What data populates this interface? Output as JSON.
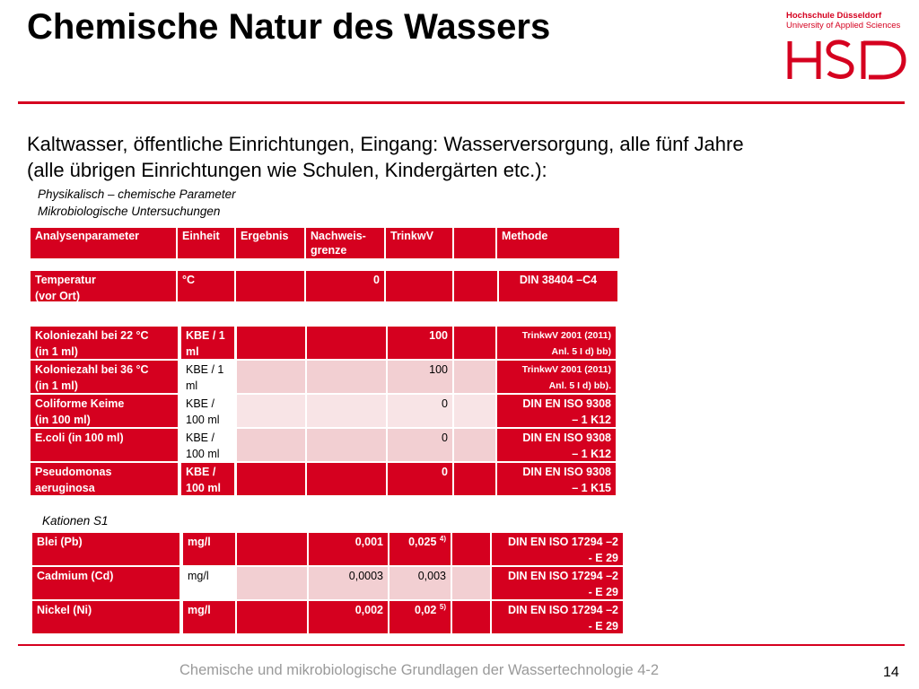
{
  "title": "Chemische Natur des Wassers",
  "logo": {
    "name": "Hochschule Düsseldorf",
    "subtitle": "University of Applied Sciences",
    "mark": "HSD",
    "color": "#d5001f"
  },
  "intro": {
    "line1": "Kaltwasser, öffentliche Einrichtungen, Eingang: Wasserversorgung, alle fünf Jahre",
    "line2": "(alle übrigen Einrichtungen wie Schulen, Kindergärten etc.):"
  },
  "subheadings": {
    "phys": "Physikalisch – chemische Parameter",
    "mikro": "Mikrobiologische Untersuchungen",
    "kationen": "Kationen S1"
  },
  "table_header": {
    "analysenparameter": "Analysenparameter",
    "einheit": "Einheit",
    "ergebnis": "Ergebnis",
    "nachweis1": "Nachweis-",
    "nachweis2": "grenze",
    "trinkwv": "TrinkwV",
    "methode": "Methode"
  },
  "temperature": {
    "param1": "Temperatur",
    "param2": "(vor Ort)",
    "unit": "°C",
    "nachweis": "0",
    "methode": "DIN 38404 –C4"
  },
  "micro": [
    {
      "p1": "Koloniezahl bei 22 °C",
      "p2": "(in 1 ml)",
      "u1": "KBE / 1",
      "u2": "ml",
      "trinkwv": "100",
      "m1": "TrinkwV 2001 (2011)",
      "m2": "Anl. 5 I d) bb)"
    },
    {
      "p1": "Koloniezahl bei 36 °C",
      "p2": "(in 1 ml)",
      "u1": "KBE / 1",
      "u2": "ml",
      "trinkwv": "100",
      "m1": "TrinkwV 2001 (2011)",
      "m2": "Anl. 5 I d) bb)."
    },
    {
      "p1": "Coliforme Keime",
      "p2": "(in 100 ml)",
      "u1": "KBE /",
      "u2": "100 ml",
      "trinkwv": "0",
      "m1": "DIN EN ISO 9308",
      "m2": "– 1 K12"
    },
    {
      "p1": "E.coli (in 100 ml)",
      "p2": "",
      "u1": "KBE /",
      "u2": "100 ml",
      "trinkwv": "0",
      "m1": "DIN EN ISO 9308",
      "m2": "– 1 K12"
    },
    {
      "p1": "Pseudomonas",
      "p2": "aeruginosa",
      "u1": "KBE /",
      "u2": "100 ml",
      "trinkwv": "0",
      "m1": "DIN EN ISO 9308",
      "m2": "– 1 K15"
    }
  ],
  "cations": [
    {
      "param": "Blei (Pb)",
      "unit": "mg/l",
      "nachweis": "0,001",
      "trinkwv": "0,025",
      "sup": "4)",
      "m1": "DIN EN ISO 17294 –2",
      "m2": "- E 29"
    },
    {
      "param": "Cadmium (Cd)",
      "unit": "mg/l",
      "nachweis": "0,0003",
      "trinkwv": "0,003",
      "sup": "",
      "m1": "DIN EN ISO 17294 –2",
      "m2": "- E 29"
    },
    {
      "param": "Nickel (Ni)",
      "unit": "mg/l",
      "nachweis": "0,002",
      "trinkwv": "0,02",
      "sup": "5)",
      "m1": "DIN EN ISO 17294 –2",
      "m2": "- E 29"
    }
  ],
  "footer": "Chemische und mikrobiologische Grundlagen der Wassertechnologie 4-2",
  "page_number": "14"
}
